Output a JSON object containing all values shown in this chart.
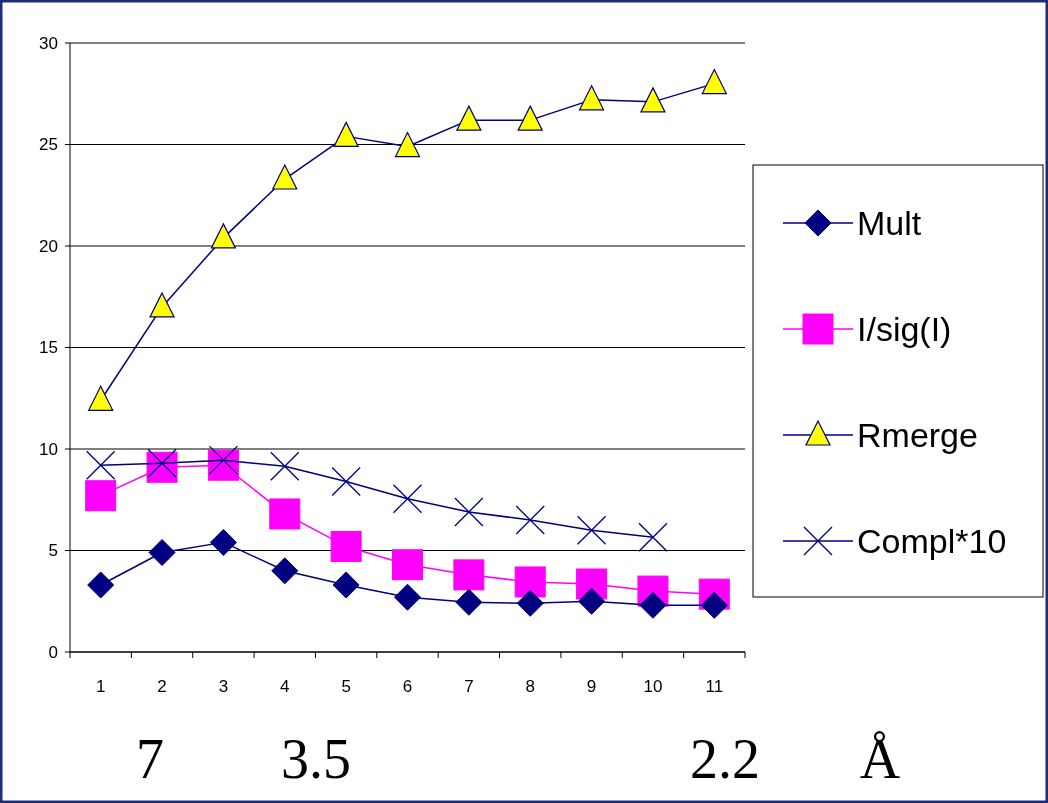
{
  "chart_data": {
    "type": "line",
    "categories": [
      "1",
      "2",
      "3",
      "4",
      "5",
      "6",
      "7",
      "8",
      "9",
      "10",
      "11"
    ],
    "series": [
      {
        "name": "Mult",
        "color": "#000080",
        "marker": "diamond",
        "values": [
          3.3,
          4.9,
          5.4,
          4.0,
          3.3,
          2.7,
          2.45,
          2.4,
          2.5,
          2.3,
          2.3
        ]
      },
      {
        "name": "I/sig(I)",
        "color": "#ff00ff",
        "marker": "square",
        "values": [
          7.7,
          9.1,
          9.2,
          6.8,
          5.2,
          4.3,
          3.8,
          3.45,
          3.35,
          3.0,
          2.85
        ]
      },
      {
        "name": "Rmerge",
        "color": "#000080",
        "marker": "triangle",
        "values": [
          12.4,
          17.0,
          20.4,
          23.3,
          25.4,
          24.9,
          26.2,
          26.2,
          27.2,
          27.1,
          28.0
        ]
      },
      {
        "name": "Compl*10",
        "color": "#000080",
        "marker": "cross",
        "values": [
          9.2,
          9.3,
          9.45,
          9.15,
          8.4,
          7.55,
          6.9,
          6.5,
          6.0,
          5.65,
          null
        ]
      }
    ],
    "ylim": [
      0,
      30
    ],
    "yticks": [
      0,
      5,
      10,
      15,
      20,
      25,
      30
    ],
    "grid": "y",
    "legend": "right",
    "annotations": [
      "7",
      "3.5",
      "2.2",
      "Å"
    ]
  }
}
